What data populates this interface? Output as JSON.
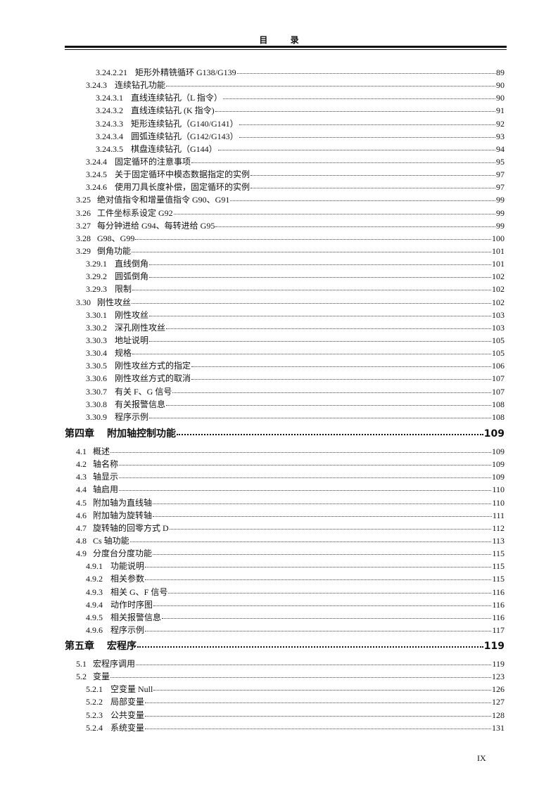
{
  "header": {
    "title": "目 录"
  },
  "blocks": [
    {
      "entries": [
        {
          "level": 3,
          "num": "3.24.2.21",
          "title": "矩形外精铣循环 G138/G139",
          "page": "89"
        },
        {
          "level": 2,
          "num": "3.24.3",
          "title": "连续钻孔功能",
          "page": "90"
        },
        {
          "level": 3,
          "num": "3.24.3.1",
          "title": "直线连续钻孔（L 指令）",
          "page": "90"
        },
        {
          "level": 3,
          "num": "3.24.3.2",
          "title": "直线连续钻孔 (K 指令)",
          "page": "91"
        },
        {
          "level": 3,
          "num": "3.24.3.3",
          "title": "矩形连续钻孔（G140/G141）",
          "page": "92"
        },
        {
          "level": 3,
          "num": "3.24.3.4",
          "title": "圆弧连续钻孔（G142/G143）",
          "page": "93"
        },
        {
          "level": 3,
          "num": "3.24.3.5",
          "title": "棋盘连续钻孔（G144）",
          "page": "94"
        },
        {
          "level": 2,
          "num": "3.24.4",
          "title": "固定循环的注意事项",
          "page": "95"
        },
        {
          "level": 2,
          "num": "3.24.5",
          "title": "关于固定循环中模态数据指定的实例",
          "page": "97"
        },
        {
          "level": 2,
          "num": "3.24.6",
          "title": "使用刀具长度补偿，固定循环的实例",
          "page": "97"
        },
        {
          "level": 1,
          "num": "3.25",
          "title": "绝对值指令和增量值指令 G90、G91",
          "page": "99"
        },
        {
          "level": 1,
          "num": "3.26",
          "title": "工件坐标系设定 G92",
          "page": "99"
        },
        {
          "level": 1,
          "num": "3.27",
          "title": "每分钟进给 G94、每转进给 G95",
          "page": "99"
        },
        {
          "level": 1,
          "num": "3.28",
          "title": "G98、G99",
          "page": "100"
        },
        {
          "level": 1,
          "num": "3.29",
          "title": "倒角功能",
          "page": "101"
        },
        {
          "level": 2,
          "num": "3.29.1",
          "title": "直线倒角",
          "page": "101"
        },
        {
          "level": 2,
          "num": "3.29.2",
          "title": "圆弧倒角",
          "page": "102"
        },
        {
          "level": 2,
          "num": "3.29.3",
          "title": "限制",
          "page": "102"
        },
        {
          "level": 1,
          "num": "3.30",
          "title": "刚性攻丝",
          "page": "102"
        },
        {
          "level": 2,
          "num": "3.30.1",
          "title": "刚性攻丝",
          "page": "103"
        },
        {
          "level": 2,
          "num": "3.30.2",
          "title": "深孔刚性攻丝",
          "page": "103"
        },
        {
          "level": 2,
          "num": "3.30.3",
          "title": "地址说明",
          "page": "105"
        },
        {
          "level": 2,
          "num": "3.30.4",
          "title": "规格",
          "page": "105"
        },
        {
          "level": 2,
          "num": "3.30.5",
          "title": "刚性攻丝方式的指定",
          "page": "106"
        },
        {
          "level": 2,
          "num": "3.30.6",
          "title": "刚性攻丝方式的取消",
          "page": "107"
        },
        {
          "level": 2,
          "num": "3.30.7",
          "title": "有关 F、G 信号",
          "page": "107"
        },
        {
          "level": 2,
          "num": "3.30.8",
          "title": "有关报警信息",
          "page": "108"
        },
        {
          "level": 2,
          "num": "3.30.9",
          "title": "程序示例",
          "page": "108"
        }
      ]
    },
    {
      "entries": [
        {
          "level": 0,
          "num": "第四章",
          "title": "附加轴控制功能",
          "page": "109"
        },
        {
          "level": 1,
          "num": "4.1",
          "title": "概述",
          "page": "109"
        },
        {
          "level": 1,
          "num": "4.2",
          "title": "轴名称",
          "page": "109"
        },
        {
          "level": 1,
          "num": "4.3",
          "title": "轴显示",
          "page": "109"
        },
        {
          "level": 1,
          "num": "4.4",
          "title": "轴启用",
          "page": "110"
        },
        {
          "level": 1,
          "num": "4.5",
          "title": "附加轴为直线轴",
          "page": "110"
        },
        {
          "level": 1,
          "num": "4.6",
          "title": "附加轴为旋转轴",
          "page": "111"
        },
        {
          "level": 1,
          "num": "4.7",
          "title": "旋转轴的回零方式 D",
          "page": "112"
        },
        {
          "level": 1,
          "num": "4.8",
          "title": "Cs 轴功能",
          "page": "113"
        },
        {
          "level": 1,
          "num": "4.9",
          "title": "分度台分度功能",
          "page": "115"
        },
        {
          "level": 2,
          "num": "4.9.1",
          "title": "功能说明",
          "page": "115"
        },
        {
          "level": 2,
          "num": "4.9.2",
          "title": "相关参数",
          "page": "115"
        },
        {
          "level": 2,
          "num": "4.9.3",
          "title": "相关 G、F 信号",
          "page": "116"
        },
        {
          "level": 2,
          "num": "4.9.4",
          "title": "动作时序图",
          "page": "116"
        },
        {
          "level": 2,
          "num": "4.9.5",
          "title": "相关报警信息",
          "page": "116"
        },
        {
          "level": 2,
          "num": "4.9.6",
          "title": "程序示例",
          "page": "117"
        }
      ]
    },
    {
      "entries": [
        {
          "level": 0,
          "num": "第五章",
          "title": "宏程序",
          "page": "119"
        },
        {
          "level": 1,
          "num": "5.1",
          "title": "宏程序调用",
          "page": "119"
        },
        {
          "level": 1,
          "num": "5.2",
          "title": "变量",
          "page": "123"
        },
        {
          "level": 2,
          "num": "5.2.1",
          "title": "空变量 Null",
          "page": "126"
        },
        {
          "level": 2,
          "num": "5.2.2",
          "title": "局部变量",
          "page": "127"
        },
        {
          "level": 2,
          "num": "5.2.3",
          "title": "公共变量",
          "page": "128"
        },
        {
          "level": 2,
          "num": "5.2.4",
          "title": "系统变量",
          "page": "131"
        }
      ]
    }
  ],
  "footer": {
    "page_number": "IX"
  }
}
